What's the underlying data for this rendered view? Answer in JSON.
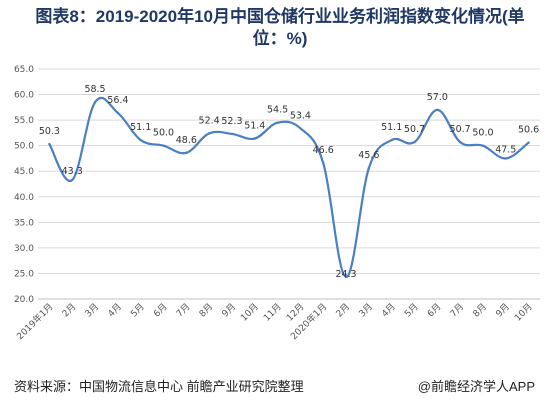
{
  "title": "图表8：2019-2020年10月中国仓储行业业务利润指数变化情况(单位：%)",
  "footer": {
    "source": "资料来源：中国物流信息中心 前瞻产业研究院整理",
    "brand": "@前瞻经济学人APP"
  },
  "colors": {
    "line": "#4a7fc1",
    "grid": "#d9d9d9",
    "axis": "#bfbfbf"
  },
  "chart_data": {
    "type": "line",
    "title": "图表8：2019-2020年10月中国仓储行业业务利润指数变化情况(单位：%)",
    "xlabel": "",
    "ylabel": "",
    "ylim": [
      20.0,
      65.0
    ],
    "yticks": [
      "20.0",
      "25.0",
      "30.0",
      "35.0",
      "40.0",
      "45.0",
      "50.0",
      "55.0",
      "60.0",
      "65.0"
    ],
    "grid": true,
    "categories": [
      "2019年1月",
      "2月",
      "3月",
      "4月",
      "5月",
      "6月",
      "7月",
      "8月",
      "9月",
      "10月",
      "11月",
      "12月",
      "2020年1月",
      "2月",
      "3月",
      "4月",
      "5月",
      "6月",
      "7月",
      "8月",
      "9月",
      "10月"
    ],
    "series": [
      {
        "values": [
          50.3,
          43.3,
          58.5,
          56.4,
          51.1,
          50.0,
          48.6,
          52.4,
          52.3,
          51.4,
          54.5,
          53.4,
          46.6,
          24.3,
          45.6,
          51.1,
          50.7,
          57.0,
          50.7,
          50.0,
          47.5,
          50.6
        ]
      }
    ],
    "data_labels": [
      "50.3",
      "43.3",
      "58.5",
      "56.4",
      "51.1",
      "50.0",
      "48.6",
      "52.4",
      "52.3",
      "51.4",
      "54.5",
      "53.4",
      "46.6",
      "24.3",
      "45.6",
      "51.1",
      "50.7",
      "57.0",
      "50.7",
      "50.0",
      "47.5",
      "50.6"
    ]
  }
}
